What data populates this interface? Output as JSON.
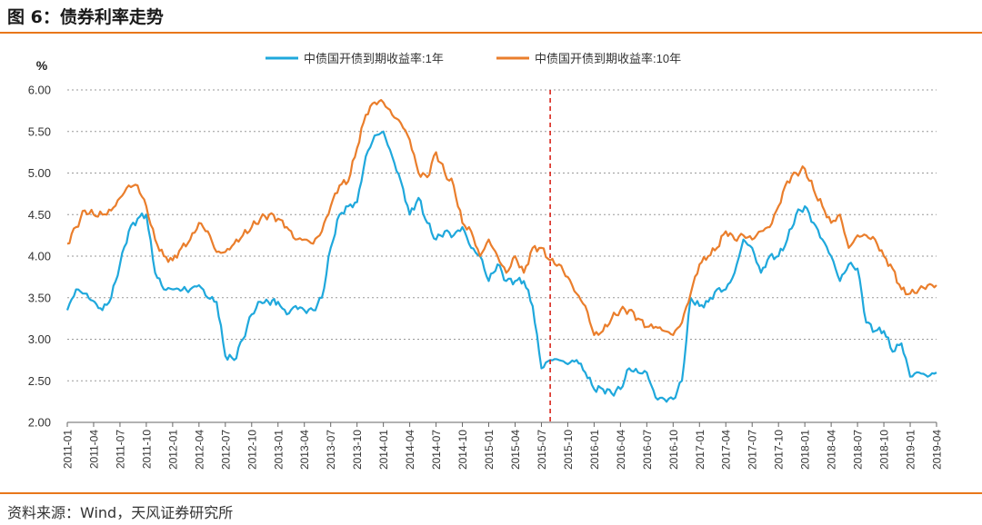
{
  "figure": {
    "title": "图 6：债券利率走势",
    "source": "资料来源：Wind，天风证券研究所"
  },
  "colors": {
    "accent": "#e8771a",
    "series_1y": "#1fa8dc",
    "series_10y": "#ea7e2c",
    "marker": "#d9261c",
    "grid": "#9a9a9a"
  },
  "chart_data": {
    "type": "line",
    "title": "",
    "ylabel": "%",
    "xlabel": "",
    "ylim": [
      2.0,
      6.0
    ],
    "yticks": [
      "2.00",
      "2.50",
      "3.00",
      "3.50",
      "4.00",
      "4.50",
      "5.00",
      "5.50",
      "6.00"
    ],
    "xticks": [
      "2011-01",
      "2011-04",
      "2011-07",
      "2011-10",
      "2012-01",
      "2012-04",
      "2012-07",
      "2012-10",
      "2013-01",
      "2013-04",
      "2013-07",
      "2013-10",
      "2014-01",
      "2014-04",
      "2014-07",
      "2014-10",
      "2015-01",
      "2015-04",
      "2015-07",
      "2015-10",
      "2016-01",
      "2016-04",
      "2016-07",
      "2016-10",
      "2017-01",
      "2017-04",
      "2017-07",
      "2017-10",
      "2018-01",
      "2018-04",
      "2018-07",
      "2018-10",
      "2019-01",
      "2019-04"
    ],
    "grid": "horizontal-dashed",
    "legend_position": "top",
    "annotation": {
      "type": "vertical-dashed-line",
      "x": "2015-08"
    },
    "series": [
      {
        "name": "中债国开债到期收益率:1年",
        "x": [
          "2011-01",
          "2011-02",
          "2011-03",
          "2011-05",
          "2011-06",
          "2011-07",
          "2011-08",
          "2011-09",
          "2011-10",
          "2011-11",
          "2011-12",
          "2012-01",
          "2012-03",
          "2012-04",
          "2012-05",
          "2012-06",
          "2012-07",
          "2012-08",
          "2012-09",
          "2012-10",
          "2012-11",
          "2013-01",
          "2013-02",
          "2013-03",
          "2013-04",
          "2013-05",
          "2013-06",
          "2013-07",
          "2013-08",
          "2013-09",
          "2013-10",
          "2013-11",
          "2013-12",
          "2014-01",
          "2014-02",
          "2014-03",
          "2014-04",
          "2014-05",
          "2014-06",
          "2014-07",
          "2014-08",
          "2014-09",
          "2014-10",
          "2014-11",
          "2014-12",
          "2015-01",
          "2015-02",
          "2015-03",
          "2015-04",
          "2015-05",
          "2015-06",
          "2015-07",
          "2015-08",
          "2015-09",
          "2015-10",
          "2015-11",
          "2015-12",
          "2016-01",
          "2016-02",
          "2016-03",
          "2016-04",
          "2016-05",
          "2016-06",
          "2016-07",
          "2016-08",
          "2016-09",
          "2016-10",
          "2016-11",
          "2016-12",
          "2017-01",
          "2017-02",
          "2017-03",
          "2017-04",
          "2017-05",
          "2017-06",
          "2017-07",
          "2017-08",
          "2017-09",
          "2017-10",
          "2017-11",
          "2017-12",
          "2018-01",
          "2018-02",
          "2018-03",
          "2018-04",
          "2018-05",
          "2018-06",
          "2018-07",
          "2018-08",
          "2018-09",
          "2018-10",
          "2018-11",
          "2018-12",
          "2019-01",
          "2019-02",
          "2019-03",
          "2019-04"
        ],
        "values": [
          3.35,
          3.6,
          3.55,
          3.35,
          3.5,
          3.9,
          4.3,
          4.45,
          4.5,
          3.8,
          3.6,
          3.6,
          3.6,
          3.65,
          3.5,
          3.45,
          2.8,
          2.75,
          3.0,
          3.3,
          3.45,
          3.45,
          3.3,
          3.4,
          3.35,
          3.35,
          3.5,
          4.1,
          4.5,
          4.6,
          4.65,
          5.2,
          5.45,
          5.5,
          5.2,
          4.9,
          4.5,
          4.7,
          4.4,
          4.2,
          4.3,
          4.25,
          4.35,
          4.1,
          4.0,
          3.7,
          3.9,
          3.7,
          3.7,
          3.7,
          3.4,
          2.65,
          2.75,
          2.75,
          2.7,
          2.75,
          2.6,
          2.4,
          2.4,
          2.35,
          2.4,
          2.65,
          2.6,
          2.6,
          2.3,
          2.28,
          2.28,
          2.5,
          3.5,
          3.4,
          3.45,
          3.6,
          3.6,
          3.8,
          4.2,
          4.1,
          3.8,
          4.0,
          4.0,
          4.2,
          4.5,
          4.6,
          4.4,
          4.2,
          4.0,
          3.7,
          3.9,
          3.85,
          3.2,
          3.1,
          3.1,
          2.85,
          2.95,
          2.55,
          2.6,
          2.55,
          2.6
        ]
      },
      {
        "name": "中债国开债到期收益率:10年",
        "x": [
          "2011-01",
          "2011-02",
          "2011-03",
          "2011-04",
          "2011-05",
          "2011-06",
          "2011-07",
          "2011-08",
          "2011-09",
          "2011-10",
          "2011-11",
          "2011-12",
          "2012-01",
          "2012-02",
          "2012-03",
          "2012-04",
          "2012-05",
          "2012-06",
          "2012-07",
          "2012-08",
          "2012-09",
          "2012-10",
          "2012-11",
          "2012-12",
          "2013-01",
          "2013-02",
          "2013-03",
          "2013-04",
          "2013-05",
          "2013-06",
          "2013-07",
          "2013-08",
          "2013-09",
          "2013-10",
          "2013-11",
          "2013-12",
          "2014-01",
          "2014-02",
          "2014-03",
          "2014-04",
          "2014-05",
          "2014-06",
          "2014-07",
          "2014-08",
          "2014-09",
          "2014-10",
          "2014-11",
          "2014-12",
          "2015-01",
          "2015-02",
          "2015-03",
          "2015-04",
          "2015-05",
          "2015-06",
          "2015-07",
          "2015-08",
          "2015-09",
          "2015-10",
          "2015-11",
          "2015-12",
          "2016-01",
          "2016-02",
          "2016-03",
          "2016-04",
          "2016-05",
          "2016-06",
          "2016-07",
          "2016-08",
          "2016-09",
          "2016-10",
          "2016-11",
          "2016-12",
          "2017-01",
          "2017-02",
          "2017-03",
          "2017-04",
          "2017-05",
          "2017-06",
          "2017-07",
          "2017-08",
          "2017-09",
          "2017-10",
          "2017-11",
          "2017-12",
          "2018-01",
          "2018-02",
          "2018-03",
          "2018-04",
          "2018-05",
          "2018-06",
          "2018-07",
          "2018-08",
          "2018-09",
          "2018-10",
          "2018-11",
          "2018-12",
          "2019-01",
          "2019-02",
          "2019-03",
          "2019-04"
        ],
        "values": [
          4.15,
          4.35,
          4.55,
          4.5,
          4.5,
          4.55,
          4.7,
          4.85,
          4.85,
          4.6,
          4.2,
          4.0,
          3.95,
          4.1,
          4.2,
          4.4,
          4.3,
          4.05,
          4.05,
          4.15,
          4.25,
          4.35,
          4.45,
          4.5,
          4.45,
          4.35,
          4.2,
          4.2,
          4.15,
          4.3,
          4.6,
          4.85,
          4.9,
          5.3,
          5.7,
          5.85,
          5.85,
          5.7,
          5.6,
          5.4,
          5.0,
          4.95,
          5.25,
          5.0,
          4.85,
          4.4,
          4.3,
          4.0,
          4.2,
          4.0,
          3.8,
          4.0,
          3.8,
          4.1,
          4.1,
          3.95,
          3.9,
          3.75,
          3.55,
          3.4,
          3.05,
          3.1,
          3.25,
          3.35,
          3.35,
          3.25,
          3.15,
          3.15,
          3.1,
          3.05,
          3.2,
          3.55,
          3.9,
          4.0,
          4.1,
          4.3,
          4.2,
          4.25,
          4.2,
          4.3,
          4.35,
          4.6,
          4.9,
          5.0,
          5.05,
          4.8,
          4.6,
          4.4,
          4.5,
          4.1,
          4.25,
          4.25,
          4.2,
          4.0,
          3.85,
          3.6,
          3.55,
          3.6,
          3.65,
          3.65
        ]
      }
    ]
  }
}
